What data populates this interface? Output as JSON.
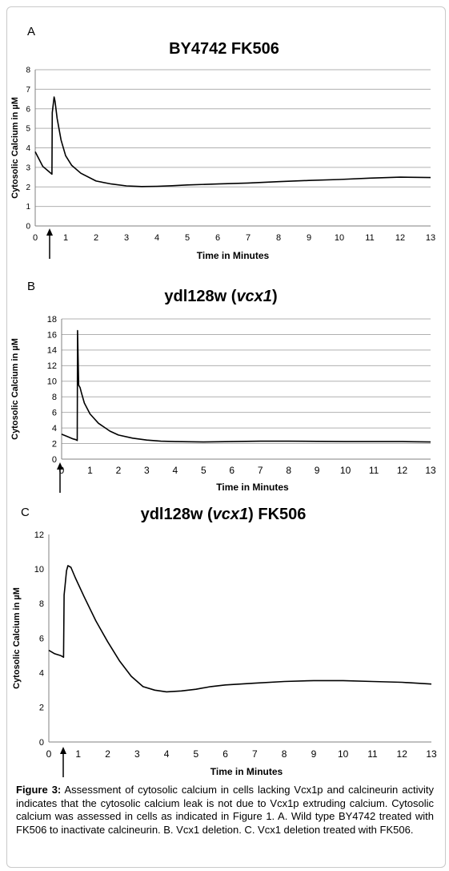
{
  "chart_data": [
    {
      "panel_label": "A",
      "type": "line",
      "title": "BY4742 FK506",
      "title_italic": "",
      "title_suffix": "",
      "xlabel": "Time in Minutes",
      "ylabel": "Cytosolic Calcium in µM",
      "xlim": [
        0,
        13
      ],
      "ylim": [
        0,
        8
      ],
      "x_ticks": [
        0,
        1,
        2,
        3,
        4,
        5,
        6,
        7,
        8,
        9,
        10,
        11,
        12,
        13
      ],
      "y_ticks": [
        0,
        1,
        2,
        3,
        4,
        5,
        6,
        7,
        8
      ],
      "grid": true,
      "arrow_at_x": 0.5,
      "series": [
        {
          "x": [
            0,
            0.1,
            0.25,
            0.4,
            0.55,
            0.56,
            0.62,
            0.65,
            0.72,
            0.85,
            1.0,
            1.2,
            1.5,
            2.0,
            2.5,
            3.0,
            3.5,
            4.0,
            4.5,
            5.0,
            6.0,
            7.0,
            8.0,
            9.0,
            10.0,
            11.0,
            12.0,
            13.0
          ],
          "y": [
            3.8,
            3.5,
            3.05,
            2.85,
            2.65,
            5.8,
            6.6,
            6.4,
            5.5,
            4.4,
            3.6,
            3.1,
            2.7,
            2.3,
            2.15,
            2.05,
            2.02,
            2.03,
            2.06,
            2.1,
            2.15,
            2.2,
            2.27,
            2.33,
            2.38,
            2.45,
            2.5,
            2.48
          ]
        }
      ]
    },
    {
      "panel_label": "B",
      "type": "line",
      "title": "ydl128w (",
      "title_italic": "vcx1",
      "title_suffix": ")",
      "xlabel": "Time in Minutes",
      "ylabel": "Cytosolic Calcium in µM",
      "xlim": [
        0,
        13
      ],
      "ylim": [
        0,
        18
      ],
      "x_ticks": [
        0,
        1,
        2,
        3,
        4,
        5,
        6,
        7,
        8,
        9,
        10,
        11,
        12,
        13
      ],
      "y_ticks": [
        0,
        2,
        4,
        6,
        8,
        10,
        12,
        14,
        16,
        18
      ],
      "grid": true,
      "arrow_at_x": 0.5,
      "series": [
        {
          "x": [
            0,
            0.2,
            0.4,
            0.5,
            0.55,
            0.56,
            0.6,
            0.65,
            0.7,
            0.8,
            1.0,
            1.3,
            1.7,
            2.0,
            2.5,
            3.0,
            3.5,
            4.0,
            5.0,
            6.0,
            7.0,
            8.0,
            9.0,
            10.0,
            11.0,
            12.0,
            13.0
          ],
          "y": [
            3.2,
            2.9,
            2.6,
            2.5,
            2.4,
            16.5,
            9.5,
            9.2,
            8.5,
            7.2,
            5.8,
            4.6,
            3.6,
            3.1,
            2.7,
            2.45,
            2.3,
            2.25,
            2.2,
            2.25,
            2.3,
            2.3,
            2.28,
            2.25,
            2.25,
            2.25,
            2.2
          ]
        }
      ]
    },
    {
      "panel_label": "C",
      "type": "line",
      "title": "ydl128w (",
      "title_italic": "vcx1",
      "title_suffix": ") FK506",
      "xlabel": "Time in Minutes",
      "ylabel": "Cytosolic Calcium in µM",
      "xlim": [
        0,
        13
      ],
      "ylim": [
        0,
        12
      ],
      "x_ticks": [
        0,
        1,
        2,
        3,
        4,
        5,
        6,
        7,
        8,
        9,
        10,
        11,
        12,
        13
      ],
      "y_ticks": [
        0,
        2,
        4,
        6,
        8,
        10,
        12
      ],
      "grid": false,
      "arrow_at_x": 0.5,
      "series": [
        {
          "x": [
            0,
            0.2,
            0.4,
            0.5,
            0.52,
            0.55,
            0.6,
            0.65,
            0.75,
            0.9,
            1.2,
            1.6,
            2.0,
            2.4,
            2.8,
            3.2,
            3.6,
            4.0,
            4.5,
            5.0,
            5.5,
            6.0,
            7.0,
            8.0,
            9.0,
            10.0,
            11.0,
            12.0,
            13.0
          ],
          "y": [
            5.3,
            5.1,
            5.0,
            4.9,
            8.5,
            9.0,
            9.9,
            10.2,
            10.1,
            9.5,
            8.4,
            7.0,
            5.8,
            4.7,
            3.8,
            3.2,
            3.0,
            2.9,
            2.95,
            3.05,
            3.2,
            3.3,
            3.4,
            3.5,
            3.55,
            3.55,
            3.5,
            3.45,
            3.35
          ]
        }
      ]
    }
  ],
  "caption": {
    "lead": "Figure 3:",
    "text": " Assessment of cytosolic calcium in cells lacking Vcx1p and calcineurin activity indicates that the cytosolic calcium leak is not due to Vcx1p extruding calcium. Cytosolic calcium was assessed in cells as indicated in Figure 1. A. Wild type BY4742 treated with FK506 to inactivate calcineurin. B. Vcx1 deletion. C. Vcx1 deletion treated with FK506."
  },
  "colors": {
    "line": "#000000",
    "grid": "#b0b0b0",
    "axis": "#808080",
    "text": "#000000"
  }
}
